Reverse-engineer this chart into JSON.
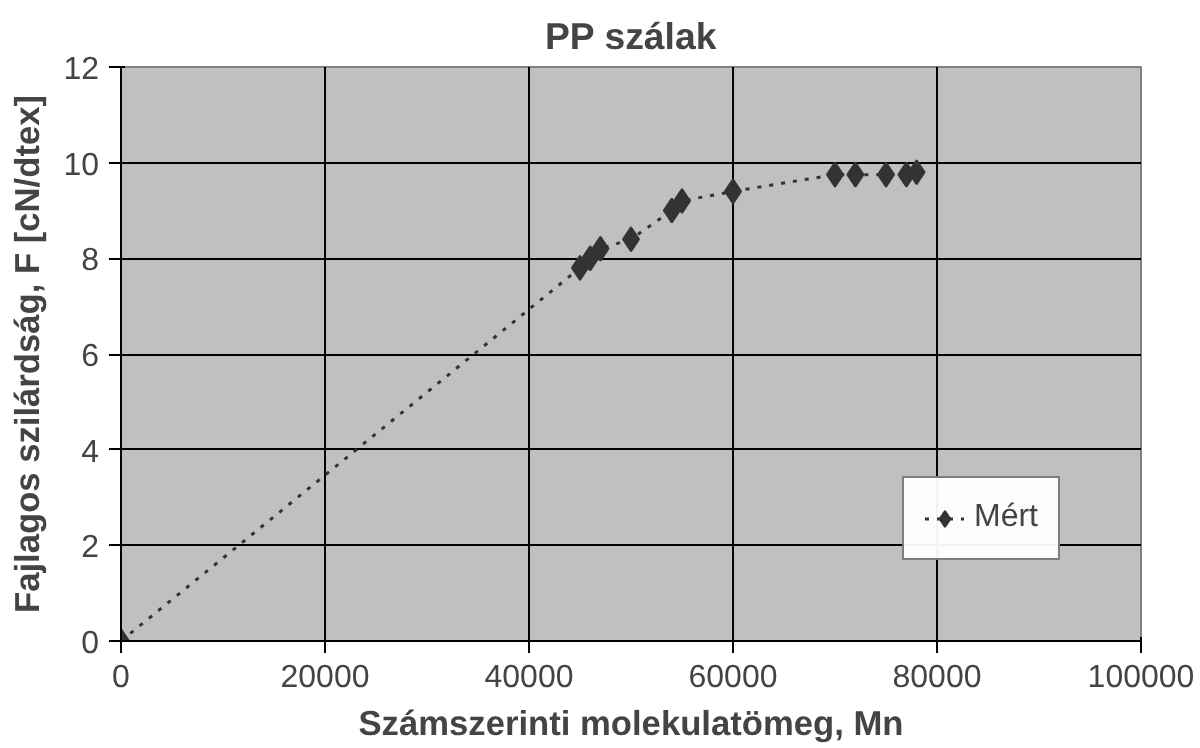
{
  "chart_data": {
    "type": "line",
    "title": "PP szálak",
    "xlabel": "Számszerinti molekulatömeg, Mn",
    "ylabel": "Fajlagos szilárdság, F [cN/dtex]",
    "x": [
      0,
      45000,
      46000,
      47000,
      50000,
      54000,
      55000,
      60000,
      70000,
      72000,
      75000,
      77000,
      78000
    ],
    "series": [
      {
        "name": "Mért",
        "color": "#333333",
        "values": [
          0,
          7.8,
          8.0,
          8.2,
          8.4,
          9.0,
          9.2,
          9.4,
          9.75,
          9.75,
          9.75,
          9.75,
          9.8
        ]
      }
    ],
    "xlim": [
      0,
      100000
    ],
    "xticks": [
      0,
      20000,
      40000,
      60000,
      80000,
      100000
    ],
    "ylim": [
      0,
      12
    ],
    "yticks": [
      0,
      2,
      4,
      6,
      8,
      10,
      12
    ],
    "grid": true,
    "legend": "bottom right",
    "marker": "diamond",
    "line_style": "dotted"
  }
}
